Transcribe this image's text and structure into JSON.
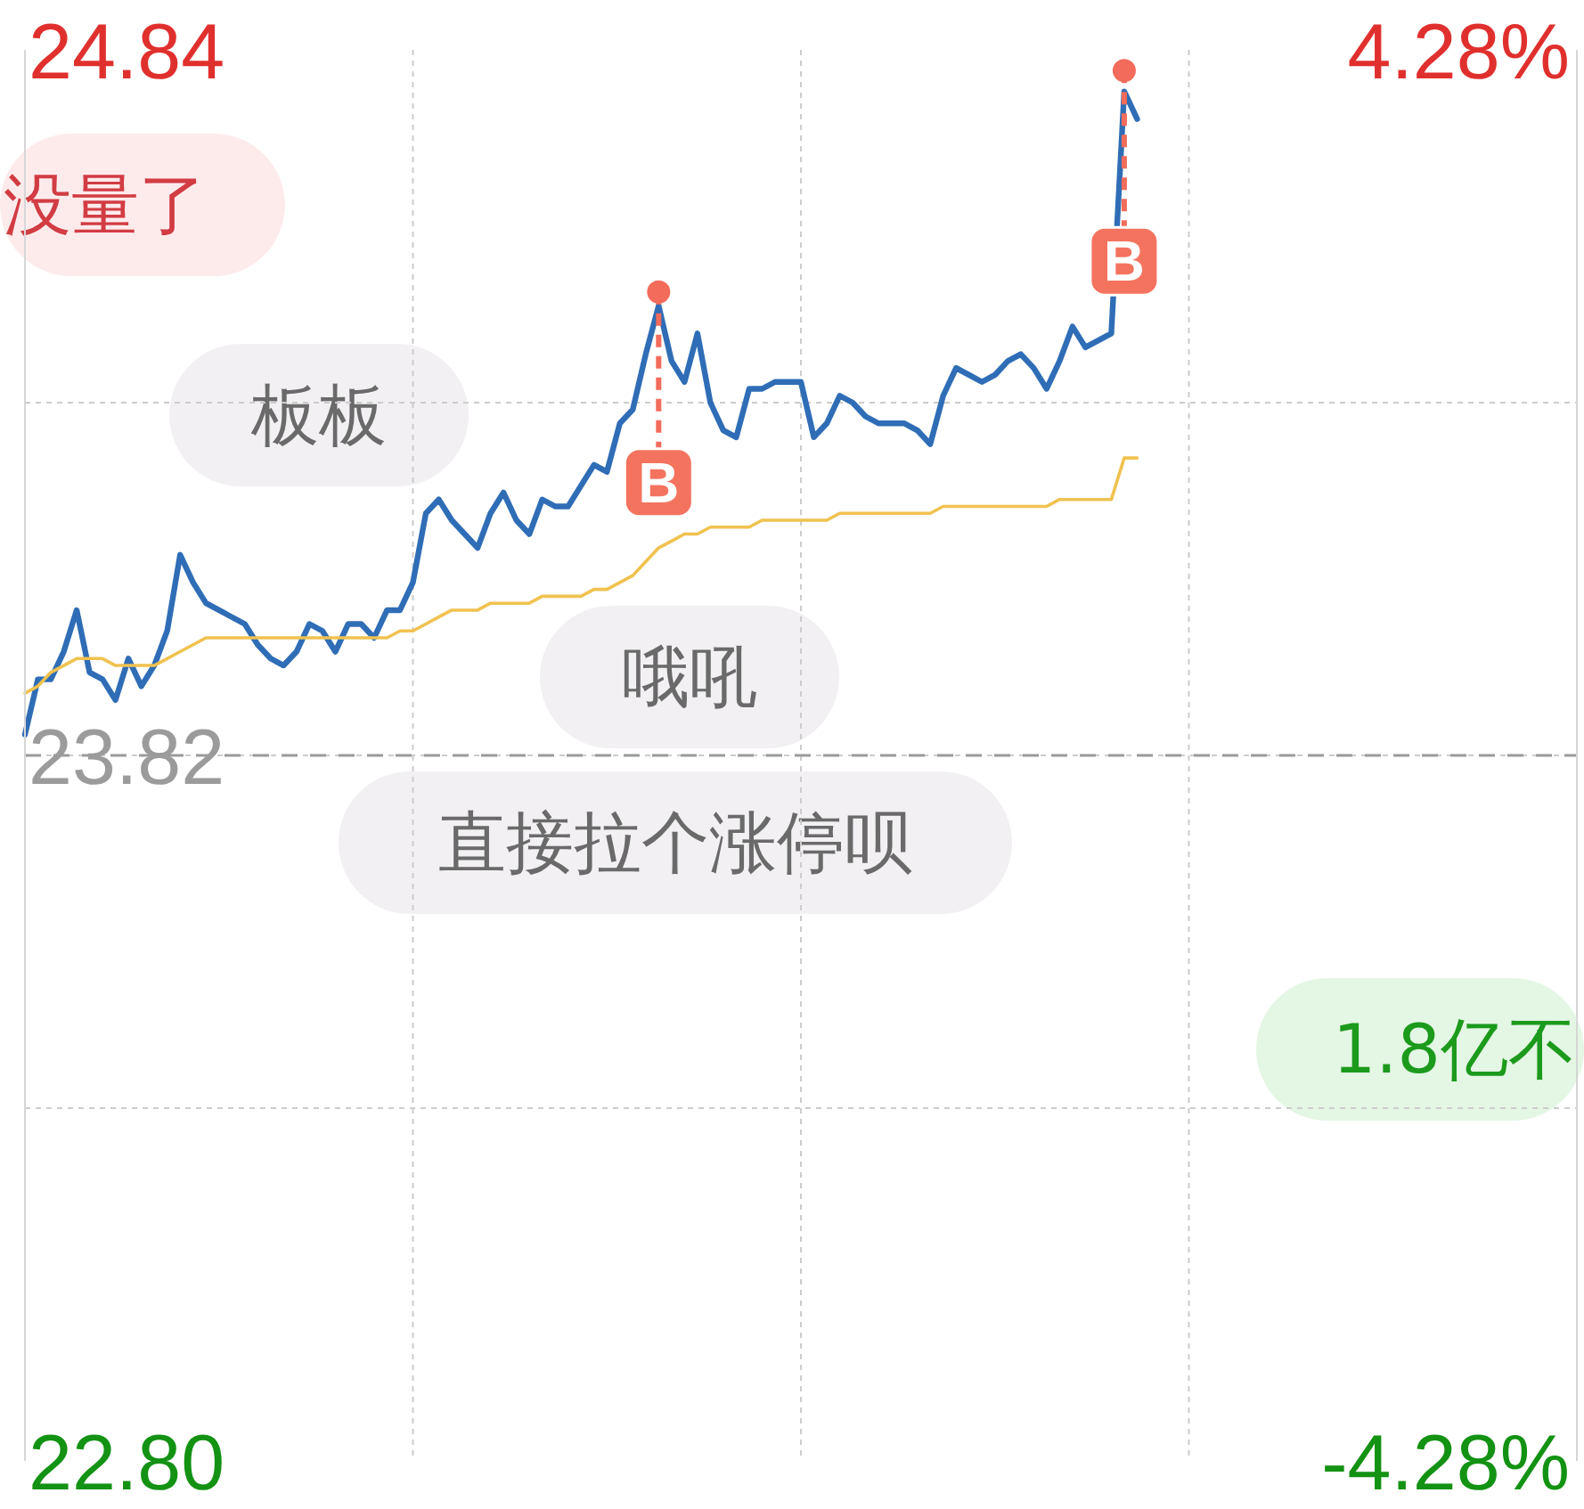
{
  "chart_data": {
    "type": "line",
    "categories": [
      null,
      null,
      null,
      null,
      null,
      null,
      null,
      null,
      null,
      null,
      null,
      null,
      null,
      null,
      null,
      null,
      null,
      null,
      null,
      null,
      null,
      null,
      null,
      null,
      null,
      null,
      null,
      null,
      null,
      null,
      null,
      null,
      null,
      null,
      null,
      null,
      null,
      null,
      null,
      null,
      null,
      null,
      null,
      null,
      null,
      null,
      null,
      null,
      null,
      null,
      null,
      null,
      null,
      null,
      null,
      null,
      null,
      null,
      null,
      null,
      null,
      null,
      null,
      null,
      null,
      null,
      null,
      null,
      null,
      null,
      null,
      null,
      null,
      null,
      null,
      null,
      null,
      null,
      null,
      null,
      null,
      null,
      null,
      null,
      null,
      null,
      null,
      null,
      null,
      null,
      null,
      null,
      null,
      null,
      null,
      null,
      null,
      null,
      null,
      null,
      null,
      null,
      null,
      null,
      null,
      null,
      null,
      null,
      null,
      null,
      null,
      null,
      null,
      null,
      null,
      null,
      null,
      null,
      null,
      null,
      null
    ],
    "series": [
      {
        "color": "#2f6db6",
        "values": [
          23.85,
          23.93,
          23.93,
          23.97,
          24.03,
          23.94,
          23.93,
          23.9,
          23.96,
          23.92,
          23.95,
          24.0,
          24.11,
          24.07,
          24.04,
          24.03,
          24.02,
          24.01,
          23.98,
          23.96,
          23.95,
          23.97,
          24.01,
          24.0,
          23.97,
          24.01,
          24.01,
          23.99,
          24.03,
          24.03,
          24.07,
          24.17,
          24.19,
          24.16,
          24.14,
          24.12,
          24.17,
          24.2,
          24.16,
          24.14,
          24.19,
          24.18,
          24.18,
          24.21,
          24.24,
          24.23,
          24.3,
          24.32,
          24.4,
          24.47,
          24.39,
          24.36,
          24.43,
          24.33,
          24.29,
          24.28,
          24.35,
          24.35,
          24.36,
          24.36,
          24.36,
          24.28,
          24.3,
          24.34,
          24.33,
          24.31,
          24.3,
          24.3,
          24.3,
          24.29,
          24.27,
          24.34,
          24.38,
          24.37,
          24.36,
          24.37,
          24.39,
          24.4,
          24.38,
          24.35,
          24.39,
          24.44,
          24.41,
          24.42,
          24.43,
          24.78,
          24.74,
          null,
          null,
          null,
          null,
          null,
          null,
          null,
          null,
          null,
          null,
          null,
          null,
          null,
          null,
          null,
          null,
          null,
          null,
          null,
          null,
          null,
          null,
          null,
          null,
          null,
          null,
          null,
          null,
          null,
          null,
          null,
          null,
          null,
          null
        ]
      },
      {
        "color": "#f0c24f",
        "values": [
          23.91,
          23.92,
          23.94,
          23.95,
          23.96,
          23.96,
          23.96,
          23.95,
          23.95,
          23.95,
          23.95,
          23.96,
          23.97,
          23.98,
          23.99,
          23.99,
          23.99,
          23.99,
          23.99,
          23.99,
          23.99,
          23.99,
          23.99,
          23.99,
          23.99,
          23.99,
          23.99,
          23.99,
          23.99,
          24.0,
          24.0,
          24.01,
          24.02,
          24.03,
          24.03,
          24.03,
          24.04,
          24.04,
          24.04,
          24.04,
          24.05,
          24.05,
          24.05,
          24.05,
          24.06,
          24.06,
          24.07,
          24.08,
          24.1,
          24.12,
          24.13,
          24.14,
          24.14,
          24.15,
          24.15,
          24.15,
          24.15,
          24.16,
          24.16,
          24.16,
          24.16,
          24.16,
          24.16,
          24.17,
          24.17,
          24.17,
          24.17,
          24.17,
          24.17,
          24.17,
          24.17,
          24.18,
          24.18,
          24.18,
          24.18,
          24.18,
          24.18,
          24.18,
          24.18,
          24.18,
          24.19,
          24.19,
          24.19,
          24.19,
          24.19,
          24.25,
          24.25,
          null,
          null,
          null,
          null,
          null,
          null,
          null,
          null,
          null,
          null,
          null,
          null,
          null,
          null,
          null,
          null,
          null,
          null,
          null,
          null,
          null,
          null,
          null,
          null,
          null,
          null,
          null,
          null,
          null,
          null,
          null,
          null,
          null,
          null
        ]
      }
    ],
    "ylim": [
      22.8,
      24.84
    ],
    "yticks": [
      {
        "value": 22.8,
        "label": "22.80"
      },
      {
        "value": 23.31,
        "label": null
      },
      {
        "value": 23.82,
        "label": "23.82"
      },
      {
        "value": 24.33,
        "label": null
      },
      {
        "value": 24.84,
        "label": "24.84"
      }
    ],
    "y2lim": [
      -4.28,
      4.28
    ],
    "y2ticks": [
      {
        "value": -4.28,
        "label": "-4.28%"
      },
      {
        "value": 4.28,
        "label": "4.28%"
      }
    ],
    "ref_lines": [
      {
        "axis": "y",
        "value": 23.82,
        "color": "#9a9a9a",
        "line_style": "dashed"
      }
    ],
    "grid": true,
    "annotations": [
      "没量了",
      {
        "text": "B",
        "y": 24.49
      },
      "板板",
      "哦吼",
      "直接拉个涨停呗",
      "1.8亿不",
      {
        "text": "B",
        "y": 24.81
      }
    ]
  }
}
